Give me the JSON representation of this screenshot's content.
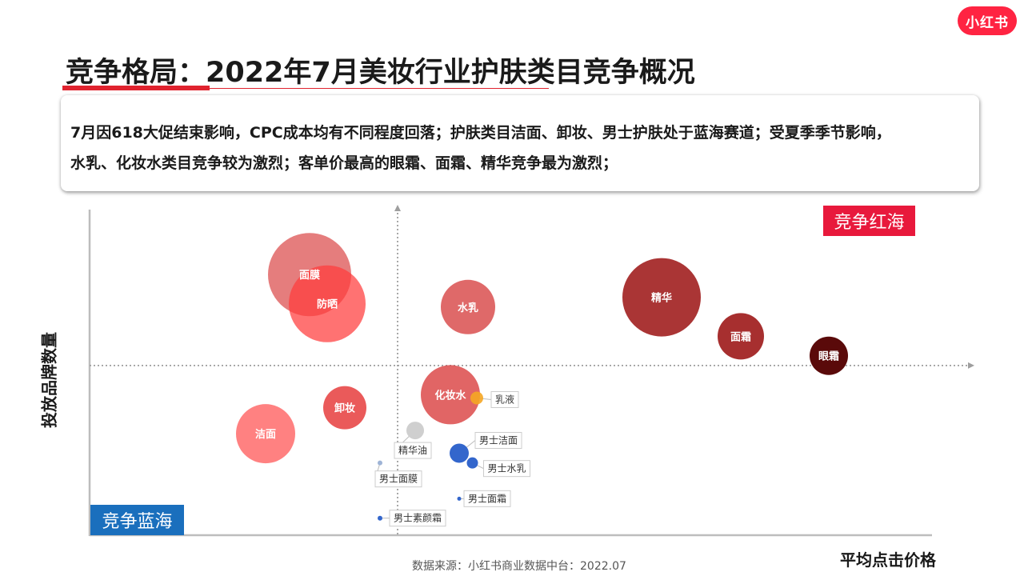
{
  "brand": {
    "logo_text": "小红书",
    "color": "#ff2442"
  },
  "title": "竞争格局：2022年7月美妆行业护肤类目竞争概况",
  "summary": {
    "line1": "7月因618大促结束影响，CPC成本均有不同程度回落；护肤类目洁面、卸妆、男士护肤处于蓝海赛道；受夏季季节影响，",
    "line2": "水乳、化妆水类目竞争较为激烈；客单价最高的眼霜、面霜、精华竞争最为激烈；"
  },
  "quadrants": {
    "red_ocean": {
      "label": "竞争红海",
      "color": "#e8193c"
    },
    "blue_ocean": {
      "label": "竞争蓝海",
      "color": "#1a6fbd"
    }
  },
  "chart_data": {
    "type": "scatter",
    "xlabel": "平均点击价格",
    "ylabel": "投放品牌数量",
    "points": [
      {
        "label": "面膜",
        "x": 25,
        "y": 80,
        "size": 52,
        "color": "#e06666",
        "opacity": 0.85,
        "label_inside": true
      },
      {
        "label": "防晒",
        "x": 27,
        "y": 71,
        "size": 48,
        "color": "#ff3b3b",
        "opacity": 0.72,
        "label_inside": true
      },
      {
        "label": "水乳",
        "x": 43,
        "y": 70,
        "size": 34,
        "color": "#d94f4f",
        "opacity": 0.85,
        "label_inside": true
      },
      {
        "label": "精华",
        "x": 65,
        "y": 73,
        "size": 49,
        "color": "#a52a2a",
        "opacity": 0.95,
        "label_inside": true
      },
      {
        "label": "面霜",
        "x": 74,
        "y": 61,
        "size": 29,
        "color": "#a22424",
        "opacity": 0.95,
        "label_inside": true
      },
      {
        "label": "眼霜",
        "x": 84,
        "y": 55,
        "size": 24,
        "color": "#5a0a0a",
        "opacity": 1,
        "label_inside": true
      },
      {
        "label": "化妆水",
        "x": 41,
        "y": 43,
        "size": 37,
        "color": "#dc4a4a",
        "opacity": 0.85,
        "label_inside": true
      },
      {
        "label": "卸妆",
        "x": 29,
        "y": 39,
        "size": 27,
        "color": "#e84848",
        "opacity": 0.9,
        "label_inside": true
      },
      {
        "label": "洁面",
        "x": 20,
        "y": 31,
        "size": 37,
        "color": "#ff6b6b",
        "opacity": 0.85,
        "label_inside": true
      },
      {
        "label": "乳液",
        "x": 44,
        "y": 42,
        "size": 8,
        "color": "#f5a623",
        "opacity": 0.9,
        "label_inside": false
      },
      {
        "label": "男士洁面",
        "x": 42,
        "y": 25,
        "size": 12,
        "color": "#3366cc",
        "opacity": 1,
        "label_inside": false
      },
      {
        "label": "男士水乳",
        "x": 43.5,
        "y": 22,
        "size": 7,
        "color": "#3366cc",
        "opacity": 1,
        "label_inside": false
      },
      {
        "label": "精华油",
        "x": 37,
        "y": 32,
        "size": 11,
        "color": "#cfcfcf",
        "opacity": 1,
        "label_inside": false
      },
      {
        "label": "男士面膜",
        "x": 33,
        "y": 22,
        "size": 3,
        "color": "#9fb4d6",
        "opacity": 1,
        "label_inside": false
      },
      {
        "label": "男士面霜",
        "x": 42,
        "y": 11,
        "size": 2.5,
        "color": "#3366cc",
        "opacity": 1,
        "label_inside": false
      },
      {
        "label": "男士素颜霜",
        "x": 33,
        "y": 5,
        "size": 3,
        "color": "#3366cc",
        "opacity": 1,
        "label_inside": false
      }
    ],
    "divider_x": 35,
    "divider_y": 52,
    "xlim": [
      0,
      100
    ],
    "ylim": [
      0,
      100
    ],
    "grid": false
  },
  "source": "数据来源：小红书商业数据中台：2022.07"
}
